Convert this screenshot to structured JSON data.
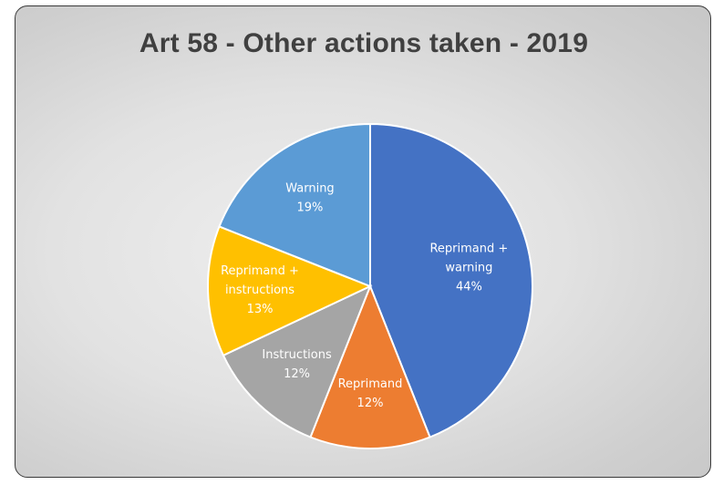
{
  "chart_data": {
    "type": "pie",
    "title": "Art 58 - Other actions taken - 2019",
    "slices": [
      {
        "label_lines": [
          "Reprimand +",
          "warning"
        ],
        "value": 44,
        "display": "44%",
        "color": "#4472C4"
      },
      {
        "label_lines": [
          "Reprimand"
        ],
        "value": 12,
        "display": "12%",
        "color": "#ED7D31"
      },
      {
        "label_lines": [
          "Instructions"
        ],
        "value": 12,
        "display": "12%",
        "color": "#A5A5A5"
      },
      {
        "label_lines": [
          "Reprimand +",
          "instructions"
        ],
        "value": 13,
        "display": "13%",
        "color": "#FFC000"
      },
      {
        "label_lines": [
          "Warning"
        ],
        "value": 19,
        "display": "19%",
        "color": "#5B9BD5"
      }
    ],
    "legend": "none",
    "data_labels": "inside"
  }
}
